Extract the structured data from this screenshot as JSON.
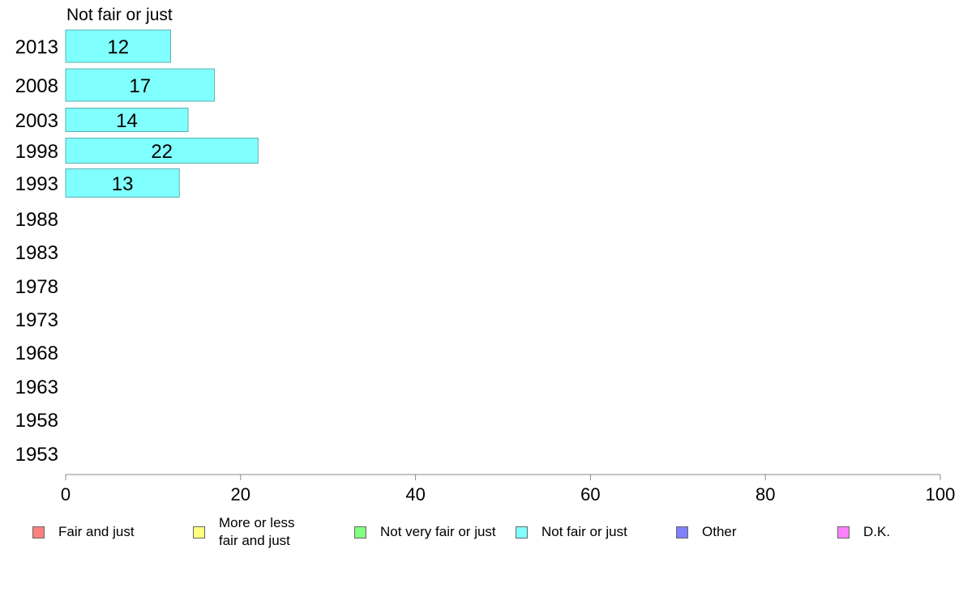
{
  "chart_data": {
    "type": "bar",
    "orientation": "horizontal",
    "title": "Not fair or just",
    "categories": [
      "2013",
      "2008",
      "2003",
      "1998",
      "1993",
      "1988",
      "1983",
      "1978",
      "1973",
      "1968",
      "1963",
      "1958",
      "1953"
    ],
    "series": [
      {
        "name": "Not fair or just",
        "color": "#80ffff",
        "values": [
          12,
          17,
          14,
          22,
          13,
          null,
          null,
          null,
          null,
          null,
          null,
          null,
          null
        ]
      }
    ],
    "xlim": [
      0,
      100
    ],
    "xticks": [
      "0",
      "20",
      "40",
      "60",
      "80",
      "100"
    ],
    "grid": false,
    "legend_position": "bottom"
  },
  "legend": [
    {
      "label": "Fair and just",
      "color": "#ff8080"
    },
    {
      "label": "More or less fair and just",
      "color": "#ffff80"
    },
    {
      "label": "Not very fair or just",
      "color": "#80ff80"
    },
    {
      "label": "Not fair or just",
      "color": "#80ffff"
    },
    {
      "label": "Other",
      "color": "#8080ff"
    },
    {
      "label": "D.K.",
      "color": "#ff80ff"
    }
  ]
}
